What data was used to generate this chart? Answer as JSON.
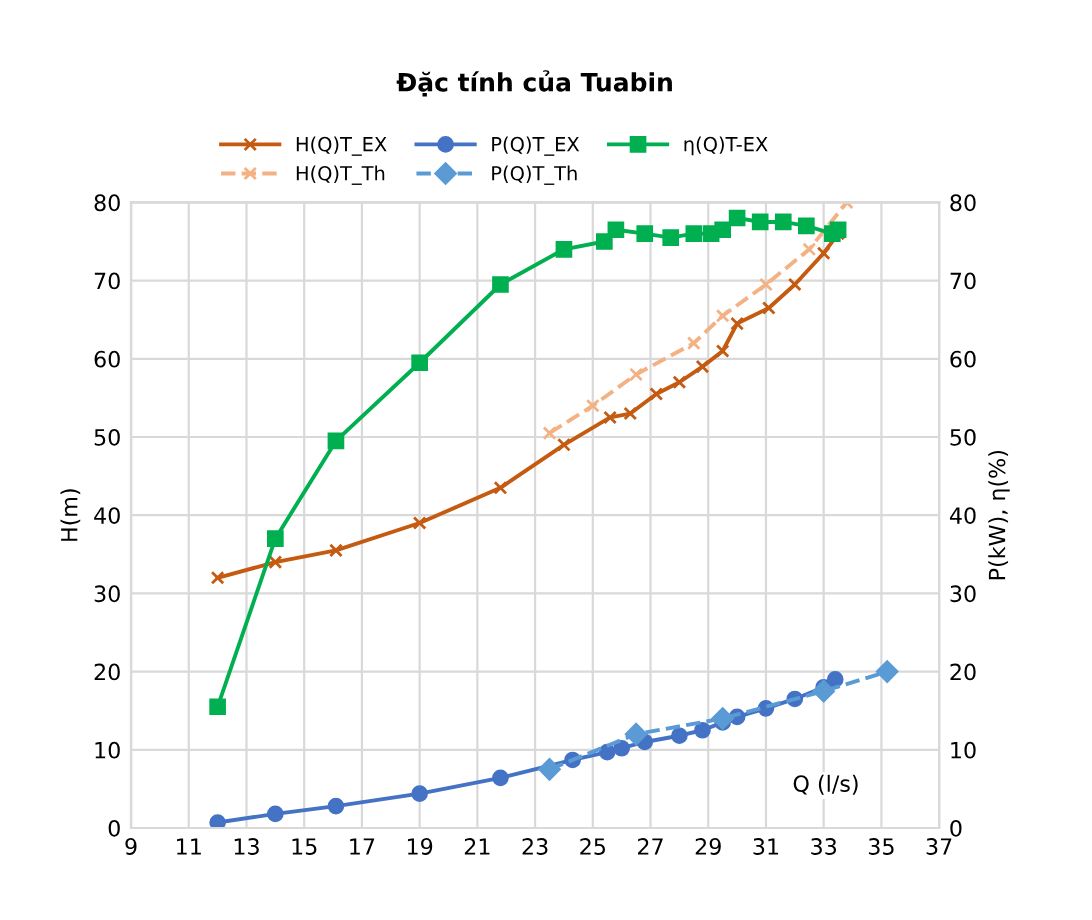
{
  "chart_data": {
    "type": "line",
    "title": "Đặc tính của Tuabin",
    "xlabel": "Q (l/s)",
    "ylabel": "H(m)",
    "y2label": "P(kW), η(%)",
    "xlim": [
      9,
      37
    ],
    "xticks": [
      9,
      11,
      13,
      15,
      17,
      19,
      21,
      23,
      25,
      27,
      29,
      31,
      33,
      35,
      37
    ],
    "ylim": [
      0,
      80
    ],
    "yticks": [
      0,
      10,
      20,
      30,
      40,
      50,
      60,
      70,
      80
    ],
    "y2lim": [
      0,
      80
    ],
    "y2ticks": [
      0,
      10,
      20,
      30,
      40,
      50,
      60,
      70,
      80
    ],
    "grid": true,
    "legend": "top",
    "series": [
      {
        "name": "H(Q)T_EX",
        "color": "#c55a11",
        "marker": "cross",
        "line_style": "solid",
        "x": [
          12,
          14,
          16.1,
          19,
          21.8,
          24,
          25.6,
          26.3,
          27.2,
          28,
          28.8,
          29.5,
          30,
          31.1,
          32,
          33,
          33.5
        ],
        "values": [
          32,
          34,
          35.5,
          39,
          43.5,
          49,
          52.5,
          53,
          55.5,
          57,
          59,
          61,
          64.5,
          66.5,
          69.5,
          73.5,
          76
        ]
      },
      {
        "name": "H(Q)T_Th",
        "color": "#f4b183",
        "marker": "cross",
        "line_style": "dashed",
        "x": [
          23.5,
          25,
          26.5,
          28.5,
          29.5,
          31,
          32.5,
          33.8
        ],
        "values": [
          50.5,
          54,
          58,
          62,
          65.5,
          69.5,
          74,
          80
        ]
      },
      {
        "name": "P(Q)T_EX",
        "color": "#4472c4",
        "marker": "circle",
        "line_style": "solid",
        "x": [
          12,
          14,
          16.1,
          19,
          21.8,
          24.3,
          25.5,
          26,
          26.8,
          28,
          28.8,
          29.5,
          30,
          31,
          32,
          33,
          33.4
        ],
        "values": [
          0.7,
          1.8,
          2.8,
          4.4,
          6.4,
          8.7,
          9.7,
          10.2,
          11,
          11.8,
          12.5,
          13.5,
          14.2,
          15.3,
          16.5,
          18,
          19
        ]
      },
      {
        "name": "P(Q)T_Th",
        "color": "#5b9bd5",
        "marker": "diamond",
        "line_style": "dashed",
        "x": [
          23.5,
          26.5,
          29.5,
          33,
          35.2
        ],
        "values": [
          7.5,
          12,
          14,
          17.5,
          20
        ]
      },
      {
        "name": "η(Q)T-EX",
        "color": "#00b050",
        "marker": "square",
        "line_style": "solid",
        "x": [
          12,
          14,
          16.1,
          19,
          21.8,
          24,
          25.4,
          25.8,
          26.8,
          27.7,
          28.5,
          29.1,
          29.5,
          30,
          30.8,
          31.6,
          32.4,
          33.3,
          33.5
        ],
        "values": [
          15.5,
          37,
          49.5,
          59.5,
          69.5,
          74,
          75,
          76.5,
          76,
          75.5,
          76,
          76,
          76.5,
          78,
          77.5,
          77.5,
          77,
          76,
          76.5
        ]
      }
    ]
  }
}
